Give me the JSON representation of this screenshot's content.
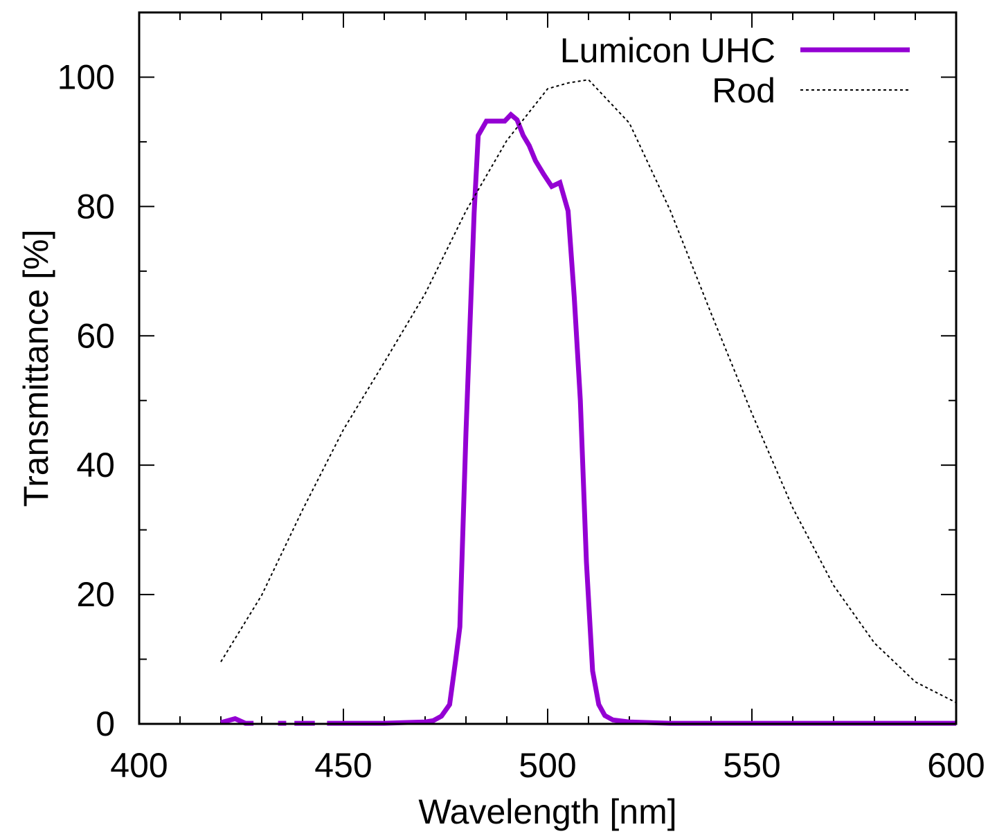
{
  "chart_data": {
    "type": "line",
    "xlabel": "Wavelength [nm]",
    "ylabel": "Transmittance [%]",
    "xlim": [
      400,
      600
    ],
    "ylim": [
      0,
      110
    ],
    "x_ticks": [
      400,
      450,
      500,
      550,
      600
    ],
    "y_ticks": [
      0,
      20,
      40,
      60,
      80,
      100
    ],
    "x_minor_step": 10,
    "y_minor_step": 10,
    "grid": false,
    "legend_position": "top-right",
    "series": [
      {
        "name": "Lumicon UHC",
        "color": "#9400d3",
        "line_style": "solid",
        "segments": [
          [
            [
              420,
              0.2
            ],
            [
              423.5,
              0.8
            ],
            [
              426,
              0.1
            ],
            [
              428,
              0.1
            ]
          ],
          [
            [
              434,
              0.1
            ],
            [
              436,
              0.1
            ]
          ],
          [
            [
              438,
              0.1
            ],
            [
              443,
              0.1
            ]
          ],
          [
            [
              446,
              0.1
            ],
            [
              455,
              0.1
            ],
            [
              460,
              0.1
            ],
            [
              465,
              0.2
            ],
            [
              470,
              0.3
            ],
            [
              472,
              0.5
            ],
            [
              474,
              1.2
            ],
            [
              476,
              3
            ],
            [
              477.5,
              10
            ],
            [
              478.5,
              15
            ],
            [
              480,
              45
            ],
            [
              482,
              79
            ],
            [
              483,
              91
            ],
            [
              485,
              93.2
            ],
            [
              488,
              93.2
            ],
            [
              489.5,
              93.2
            ],
            [
              491,
              94.2
            ],
            [
              492.5,
              93.4
            ],
            [
              494,
              91
            ],
            [
              495.5,
              89.4
            ],
            [
              497,
              87.1
            ],
            [
              499,
              85
            ],
            [
              501,
              83.1
            ],
            [
              503,
              83.7
            ],
            [
              505,
              79.3
            ],
            [
              506.5,
              66
            ],
            [
              508,
              50
            ],
            [
              509.5,
              25
            ],
            [
              511,
              8.2
            ],
            [
              512.5,
              3
            ],
            [
              514,
              1.3
            ],
            [
              516,
              0.6
            ],
            [
              520,
              0.3
            ],
            [
              530,
              0.1
            ],
            [
              550,
              0.1
            ],
            [
              600,
              0.1
            ]
          ]
        ]
      },
      {
        "name": "Rod",
        "color": "#000000",
        "line_style": "dotted",
        "segments": [
          [
            [
              420,
              9.6
            ],
            [
              430,
              19.9
            ],
            [
              440,
              33.1
            ],
            [
              450,
              45.5
            ],
            [
              460,
              55.9
            ],
            [
              470,
              66.5
            ],
            [
              480,
              79.3
            ],
            [
              490,
              90.2
            ],
            [
              500,
              98.2
            ],
            [
              505,
              99.1
            ],
            [
              510,
              99.6
            ],
            [
              520,
              92.9
            ],
            [
              530,
              79.4
            ],
            [
              540,
              63.5
            ],
            [
              550,
              48
            ],
            [
              560,
              33.4
            ],
            [
              570,
              21.4
            ],
            [
              580,
              12.5
            ],
            [
              590,
              6.5
            ],
            [
              600,
              3.3
            ]
          ]
        ]
      }
    ]
  }
}
